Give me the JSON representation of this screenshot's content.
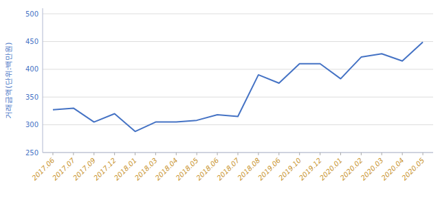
{
  "chart_data": {
    "type": "line",
    "categories": [
      "2017.06",
      "2017.07",
      "2017.09",
      "2017.12",
      "2018.01",
      "2018.03",
      "2018.04",
      "2018.05",
      "2018.06",
      "2018.07",
      "2018.08",
      "2019.06",
      "2019.10",
      "2019.12",
      "2020.01",
      "2020.02",
      "2020.03",
      "2020.04",
      "2020.05"
    ],
    "values": [
      327,
      330,
      305,
      320,
      288,
      305,
      305,
      308,
      318,
      315,
      390,
      375,
      410,
      410,
      383,
      422,
      428,
      415,
      449
    ],
    "color": "#4472C4",
    "ylabel": "거래금액(단위:백만원)",
    "ylim": [
      250,
      510
    ],
    "yticks": [
      250,
      300,
      350,
      400,
      450,
      500
    ],
    "grid": true
  }
}
